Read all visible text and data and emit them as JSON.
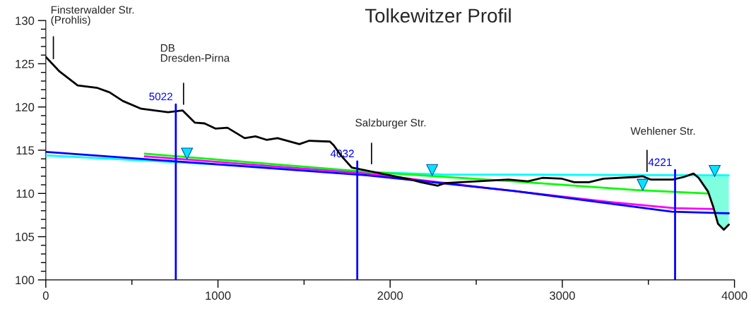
{
  "chart_data": {
    "type": "line",
    "title": "Tolkewitzer Profil",
    "xlim": [
      0,
      4000
    ],
    "xticks": [
      0,
      {
        "value": 500,
        "label": null
      },
      1000,
      {
        "value": 1500,
        "label": null
      },
      2000,
      {
        "value": 2500,
        "label": null
      },
      3000,
      {
        "value": 3500,
        "label": null
      },
      4000
    ],
    "ylim": [
      100,
      130
    ],
    "yticks": [
      100,
      {
        "value": 101,
        "label": null
      },
      {
        "value": 102,
        "label": null
      },
      {
        "value": 103,
        "label": null
      },
      {
        "value": 104,
        "label": null
      },
      105,
      {
        "value": 106,
        "label": null
      },
      {
        "value": 107,
        "label": null
      },
      {
        "value": 108,
        "label": null
      },
      {
        "value": 109,
        "label": null
      },
      110,
      {
        "value": 111,
        "label": null
      },
      {
        "value": 112,
        "label": null
      },
      {
        "value": 113,
        "label": null
      },
      {
        "value": 114,
        "label": null
      },
      115,
      {
        "value": 116,
        "label": null
      },
      {
        "value": 117,
        "label": null
      },
      {
        "value": 118,
        "label": null
      },
      {
        "value": 119,
        "label": null
      },
      120,
      {
        "value": 121,
        "label": null
      },
      {
        "value": 122,
        "label": null
      },
      {
        "value": 123,
        "label": null
      },
      {
        "value": 124,
        "label": null
      },
      125,
      {
        "value": 126,
        "label": null
      },
      {
        "value": 127,
        "label": null
      },
      {
        "value": 128,
        "label": null
      },
      {
        "value": 129,
        "label": null
      },
      130
    ],
    "grid": false,
    "legend": false,
    "series": [
      {
        "type": "area",
        "color": "#80ffdf",
        "x": [
          3792,
          3847,
          3876,
          3904,
          3938,
          3967
        ],
        "values": [
          112.1,
          112.1,
          112.1,
          112.1,
          112.1,
          112.1
        ]
      },
      {
        "color": "#00ffff",
        "x": [
          0,
          1810,
          2300,
          3967
        ],
        "values": [
          114.4,
          112.5,
          112.2,
          112.1
        ]
      },
      {
        "color": "#00ff00",
        "x": [
          575,
          1867,
          2716,
          3422,
          3847
        ],
        "values": [
          114.6,
          112.5,
          111.4,
          110.4,
          110.0
        ]
      },
      {
        "color": "#ff00ff",
        "x": [
          575,
          1867,
          2572,
          3282,
          3649,
          3876
        ],
        "values": [
          114.3,
          112.3,
          110.6,
          109.0,
          108.3,
          108.2
        ]
      },
      {
        "color": "#0000ff",
        "x": [
          0,
          1867,
          2716,
          3635,
          3967
        ],
        "values": [
          114.8,
          112.1,
          110.3,
          107.9,
          107.7
        ]
      },
      {
        "color": "#000000",
        "x": [
          0,
          80,
          185,
          300,
          370,
          447,
          554,
          710,
          794,
          865,
          922,
          985,
          1055,
          1155,
          1218,
          1282,
          1346,
          1473,
          1530,
          1650,
          1671,
          1714,
          1777,
          2121,
          2178,
          2277,
          2318,
          2503,
          2687,
          2800,
          2884,
          2999,
          3069,
          3155,
          3239,
          3422,
          3465,
          3515,
          3642,
          3705,
          3762,
          3792,
          3847,
          3876,
          3904,
          3938,
          3967
        ],
        "values": [
          125.8,
          124.1,
          122.5,
          122.2,
          121.7,
          120.7,
          119.8,
          119.4,
          119.6,
          118.2,
          118.1,
          117.5,
          117.6,
          116.4,
          116.6,
          116.2,
          116.4,
          115.7,
          116.1,
          116.0,
          115.6,
          114.4,
          113.0,
          111.6,
          111.3,
          110.9,
          111.2,
          111.4,
          111.6,
          111.4,
          111.8,
          111.7,
          111.3,
          111.3,
          111.7,
          111.9,
          112.0,
          111.6,
          111.6,
          111.9,
          112.3,
          111.8,
          110.2,
          108.5,
          106.5,
          105.8,
          106.4
        ]
      },
      {
        "name": "5022",
        "color": "#0000ff",
        "x": [
          755,
          755
        ],
        "values": [
          100,
          120.3
        ]
      },
      {
        "name": "4032",
        "color": "#0000ff",
        "x": [
          1809,
          1809
        ],
        "values": [
          100,
          113.7
        ]
      },
      {
        "name": "4221",
        "color": "#0000ff",
        "x": [
          3655,
          3655
        ],
        "values": [
          100,
          112.7
        ]
      },
      {
        "type": "scatter",
        "marker": "triangle",
        "color": "#00e5ff",
        "x": [
          820,
          2244,
          3467,
          3885
        ],
        "values": [
          114.6,
          112.7,
          111.0,
          112.6
        ]
      }
    ],
    "annotations": [
      "Finsterwalder Str.\n(Prohlis)",
      "DB\nDresden-Pirna",
      "Salzburger Str.",
      "Wehlener Str."
    ]
  }
}
